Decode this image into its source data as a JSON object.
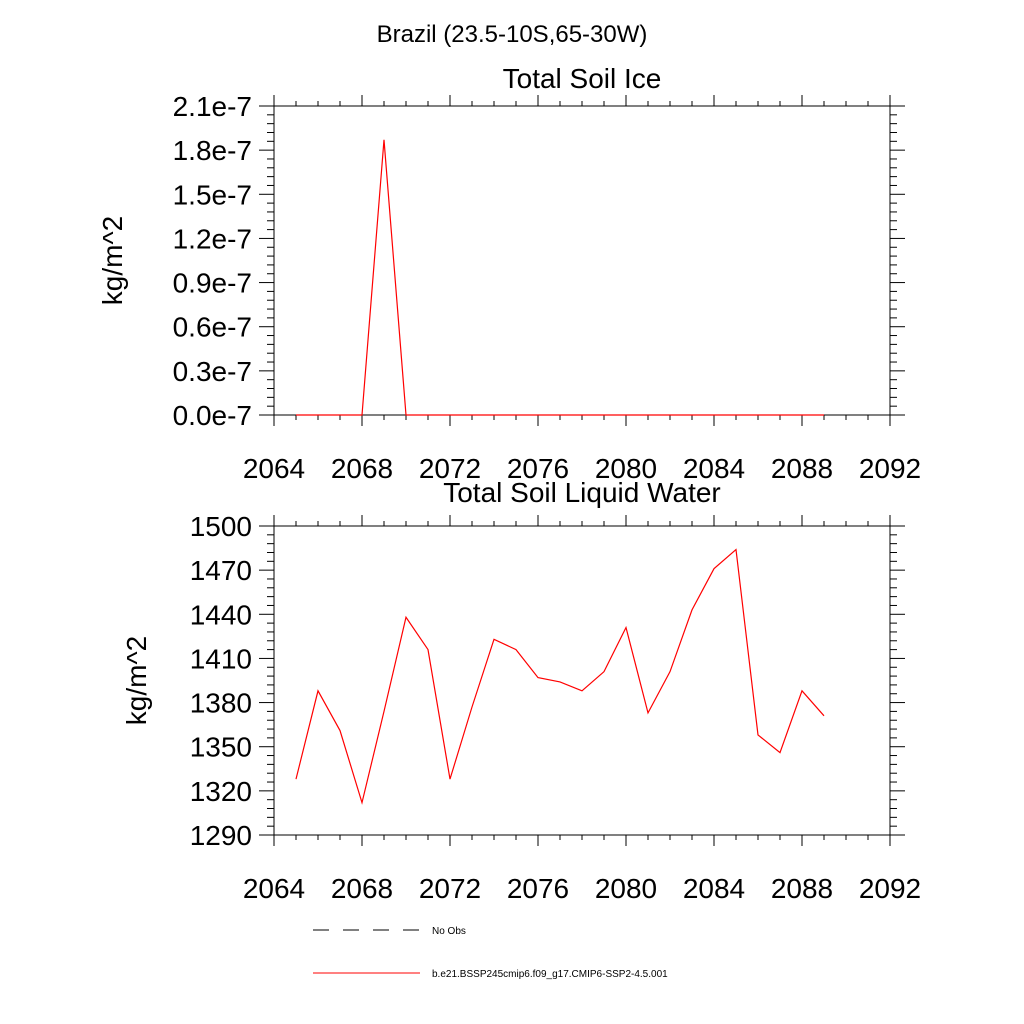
{
  "page_title": "Brazil (23.5-10S,65-30W)",
  "chart_data": [
    {
      "type": "line",
      "title": "Total Soil Ice",
      "xlabel": "",
      "ylabel": "kg/m^2",
      "xlim": [
        2064,
        2092
      ],
      "ylim": [
        0,
        2.1e-07
      ],
      "xticks": [
        2064,
        2068,
        2072,
        2076,
        2080,
        2084,
        2088,
        2092
      ],
      "xtick_labels": [
        "2064",
        "2068",
        "2072",
        "2076",
        "2080",
        "2084",
        "2088",
        "2092"
      ],
      "yticks": [
        0,
        3e-08,
        6e-08,
        9e-08,
        1.2e-07,
        1.5e-07,
        1.8e-07,
        2.1e-07
      ],
      "ytick_labels": [
        "0.0e-7",
        "0.3e-7",
        "0.6e-7",
        "0.9e-7",
        "1.2e-7",
        "1.5e-7",
        "1.8e-7",
        "2.1e-7"
      ],
      "grid": false,
      "series": [
        {
          "color": "#ff0000",
          "x": [
            2065,
            2066,
            2067,
            2068,
            2069,
            2070,
            2071,
            2072,
            2073,
            2074,
            2075,
            2076,
            2077,
            2078,
            2079,
            2080,
            2081,
            2082,
            2083,
            2084,
            2085,
            2086,
            2087,
            2088,
            2089
          ],
          "y": [
            0,
            0,
            0,
            0,
            1.87e-07,
            0,
            0,
            0,
            0,
            0,
            0,
            0,
            0,
            0,
            0,
            0,
            0,
            0,
            0,
            0,
            0,
            0,
            0,
            0,
            0
          ]
        }
      ]
    },
    {
      "type": "line",
      "title": "Total Soil Liquid Water",
      "xlabel": "",
      "ylabel": "kg/m^2",
      "xlim": [
        2064,
        2092
      ],
      "ylim": [
        1290,
        1500
      ],
      "xticks": [
        2064,
        2068,
        2072,
        2076,
        2080,
        2084,
        2088,
        2092
      ],
      "xtick_labels": [
        "2064",
        "2068",
        "2072",
        "2076",
        "2080",
        "2084",
        "2088",
        "2092"
      ],
      "yticks": [
        1290,
        1320,
        1350,
        1380,
        1410,
        1440,
        1470,
        1500
      ],
      "ytick_labels": [
        "1290",
        "1320",
        "1350",
        "1380",
        "1410",
        "1440",
        "1470",
        "1500"
      ],
      "grid": false,
      "series": [
        {
          "color": "#ff0000",
          "x": [
            2065,
            2066,
            2067,
            2068,
            2069,
            2070,
            2071,
            2072,
            2073,
            2074,
            2075,
            2076,
            2077,
            2078,
            2079,
            2080,
            2081,
            2082,
            2083,
            2084,
            2085,
            2086,
            2087,
            2088,
            2089
          ],
          "y": [
            1328,
            1388,
            1361,
            1312,
            1374,
            1438,
            1416,
            1328,
            1377,
            1423,
            1416,
            1397,
            1394,
            1388,
            1401,
            1431,
            1373,
            1401,
            1443,
            1471,
            1484,
            1358,
            1346,
            1388,
            1371
          ]
        }
      ]
    }
  ],
  "legend": {
    "placement": "bottom-center",
    "entries": [
      {
        "label": "No Obs",
        "style": "dashed",
        "color": "#000000"
      },
      {
        "label": "b.e21.BSSP245cmip6.f09_g17.CMIP6-SSP2-4.5.001",
        "style": "solid",
        "color": "#ff0000"
      }
    ]
  }
}
